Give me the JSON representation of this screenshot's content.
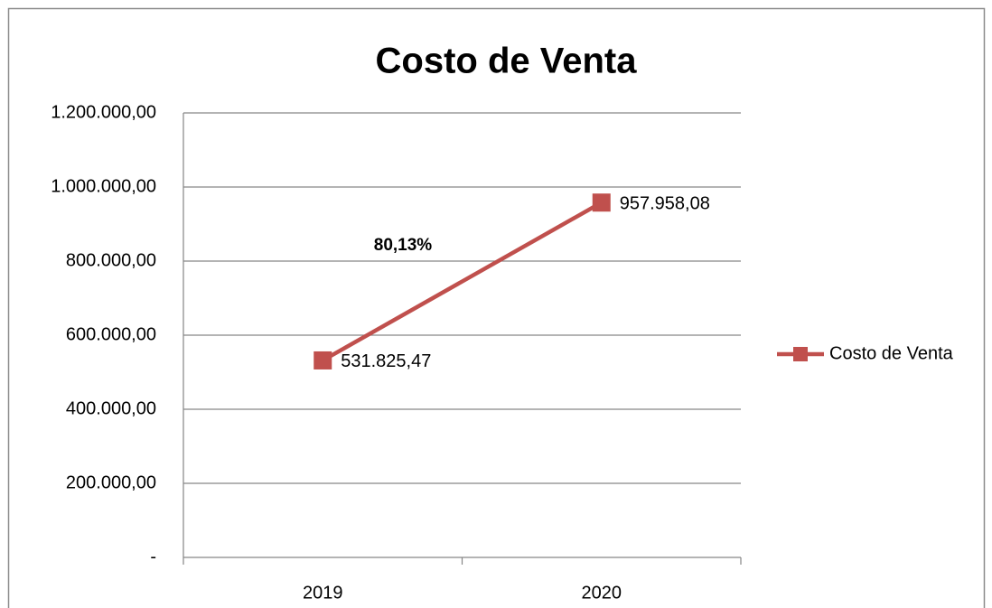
{
  "chart_data": {
    "type": "line",
    "title": "Costo de Venta",
    "categories": [
      "2019",
      "2020"
    ],
    "series": [
      {
        "name": "Costo de Venta",
        "color": "#c0504d",
        "values": [
          531825.47,
          957958.08
        ],
        "value_labels": [
          "531.825,47",
          "957.958,08"
        ]
      }
    ],
    "annotation": "80,13%",
    "ylim": [
      0,
      1200000
    ],
    "yticks": [
      {
        "value": 0,
        "label": "-"
      },
      {
        "value": 200000,
        "label": "200.000,00"
      },
      {
        "value": 400000,
        "label": "400.000,00"
      },
      {
        "value": 600000,
        "label": "600.000,00"
      },
      {
        "value": 800000,
        "label": "800.000,00"
      },
      {
        "value": 1000000,
        "label": "1.000.000,00"
      },
      {
        "value": 1200000,
        "label": "1.200.000,00"
      }
    ],
    "grid": true,
    "legend": "right"
  }
}
